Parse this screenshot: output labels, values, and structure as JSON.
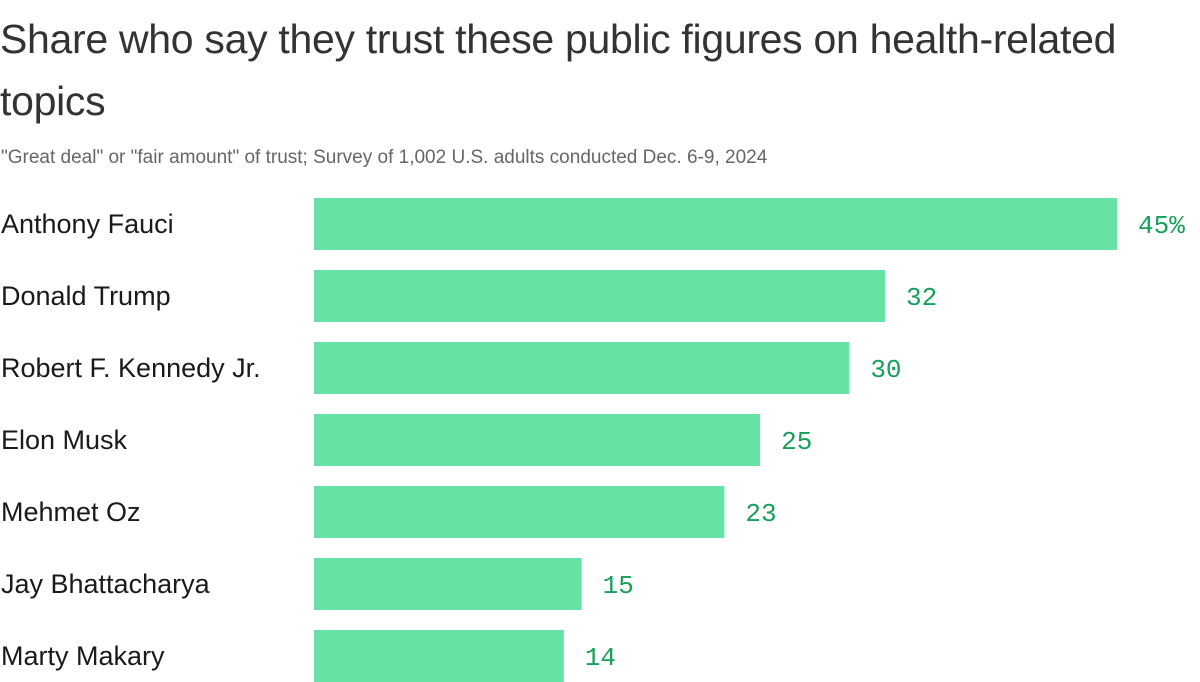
{
  "chart_data": {
    "type": "bar",
    "orientation": "horizontal",
    "title": "Share who say they trust these public figures on health-related topics",
    "subtitle": "\"Great deal\" or \"fair amount\" of trust; Survey of 1,002 U.S. adults conducted Dec. 6-9, 2024",
    "categories": [
      "Anthony Fauci",
      "Donald Trump",
      "Robert F. Kennedy Jr.",
      "Elon Musk",
      "Mehmet Oz",
      "Jay Bhattacharya",
      "Marty Makary"
    ],
    "values": [
      45,
      32,
      30,
      25,
      23,
      15,
      14
    ],
    "value_labels": [
      "45%",
      "32",
      "30",
      "25",
      "23",
      "15",
      "14"
    ],
    "unit": "%",
    "xlim": [
      0,
      45
    ],
    "grid": false,
    "legend": "none",
    "colors": {
      "bar": "#66e2a4",
      "value_text": "#16a05a"
    }
  }
}
